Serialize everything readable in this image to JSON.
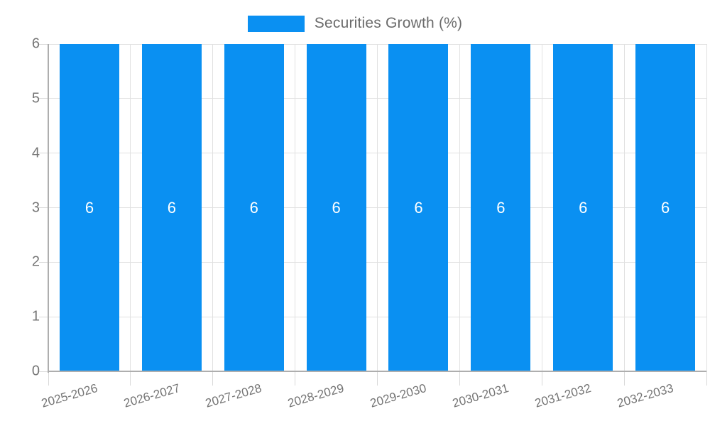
{
  "legend": {
    "label": "Securities Growth (%)"
  },
  "colors": {
    "bar": "#0a90f2",
    "grid": "#e1e1e1",
    "axis": "#aeaeae",
    "tick": "#d9d9d9",
    "axis_label": "#757575",
    "legend_text": "#6b6b6b",
    "value_label": "#ffffff",
    "background": "#ffffff"
  },
  "chart_data": {
    "type": "bar",
    "title": "Securities Growth (%)",
    "categories": [
      "2025-2026",
      "2026-2027",
      "2027-2028",
      "2028-2029",
      "2029-2030",
      "2030-2031",
      "2031-2032",
      "2032-2033"
    ],
    "values": [
      6,
      6,
      6,
      6,
      6,
      6,
      6,
      6
    ],
    "value_labels": [
      "6",
      "6",
      "6",
      "6",
      "6",
      "6",
      "6",
      "6"
    ],
    "series_name": "Securities Growth (%)",
    "xlabel": "",
    "ylabel": "",
    "y_ticks": [
      0,
      1,
      2,
      3,
      4,
      5,
      6
    ],
    "ylim": [
      0,
      6
    ],
    "grid": true,
    "legend_position": "top-center"
  }
}
